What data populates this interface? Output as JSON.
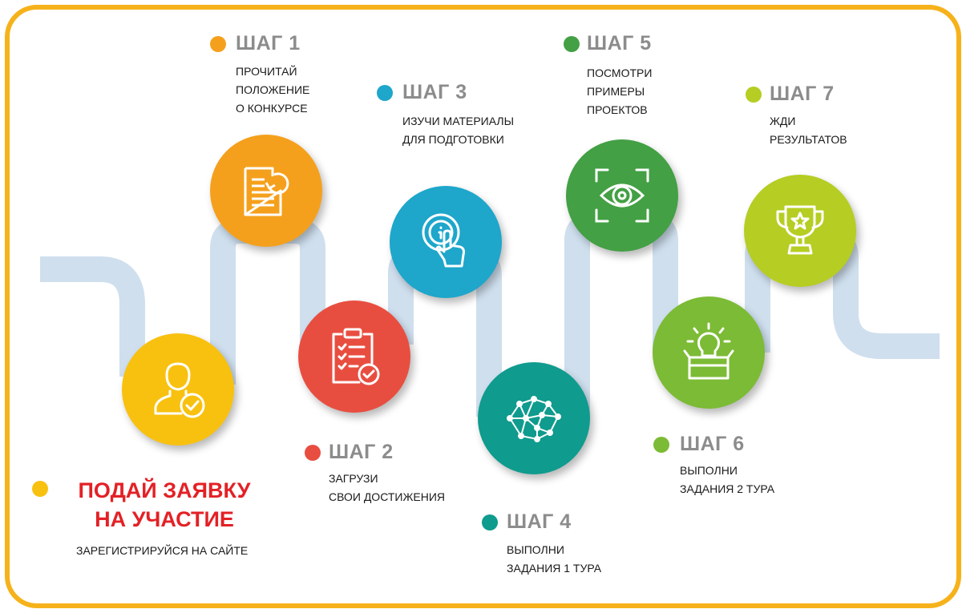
{
  "start": {
    "title_lines": [
      "ПОДАЙ ЗАЯВКУ",
      "НА УЧАСТИЕ"
    ],
    "text_lines": [
      "ЗАРЕГИСТРИРУЙСЯ НА САЙТЕ"
    ],
    "color": "#f8c10f",
    "icon": "user-check-icon"
  },
  "steps": [
    {
      "title": "ШАГ 1",
      "text_lines": [
        "ПРОЧИТАЙ",
        "ПОЛОЖЕНИЕ",
        "О КОНКУРСЕ"
      ],
      "color": "#f5a01c",
      "icon": "document-refresh-icon"
    },
    {
      "title": "ШАГ 2",
      "text_lines": [
        "ЗАГРУЗИ",
        "СВОИ ДОСТИЖЕНИЯ"
      ],
      "color": "#e84e40",
      "icon": "clipboard-check-icon"
    },
    {
      "title": "ШАГ 3",
      "text_lines": [
        "ИЗУЧИ МАТЕРИАЛЫ",
        "ДЛЯ ПОДГОТОВКИ"
      ],
      "color": "#1ea6cb",
      "icon": "touch-info-icon"
    },
    {
      "title": "ШАГ 4",
      "text_lines": [
        "ВЫПОЛНИ",
        "ЗАДАНИЯ 1 ТУРА"
      ],
      "color": "#0f9b8e",
      "icon": "neural-brain-icon"
    },
    {
      "title": "ШАГ 5",
      "text_lines": [
        "ПОСМОТРИ",
        "ПРИМЕРЫ",
        "ПРОЕКТОВ"
      ],
      "color": "#43a044",
      "icon": "eye-scan-icon"
    },
    {
      "title": "ШАГ 6",
      "text_lines": [
        "ВЫПОЛНИ",
        "ЗАДАНИЯ 2 ТУРА"
      ],
      "color": "#7cbb35",
      "icon": "idea-box-icon"
    },
    {
      "title": "ШАГ 7",
      "text_lines": [
        "ЖДИ",
        "РЕЗУЛЬТАТОВ"
      ],
      "color": "#b6cd23",
      "icon": "trophy-icon"
    }
  ],
  "road_color": "#cfdfee",
  "frame_color": "#f6b21b"
}
